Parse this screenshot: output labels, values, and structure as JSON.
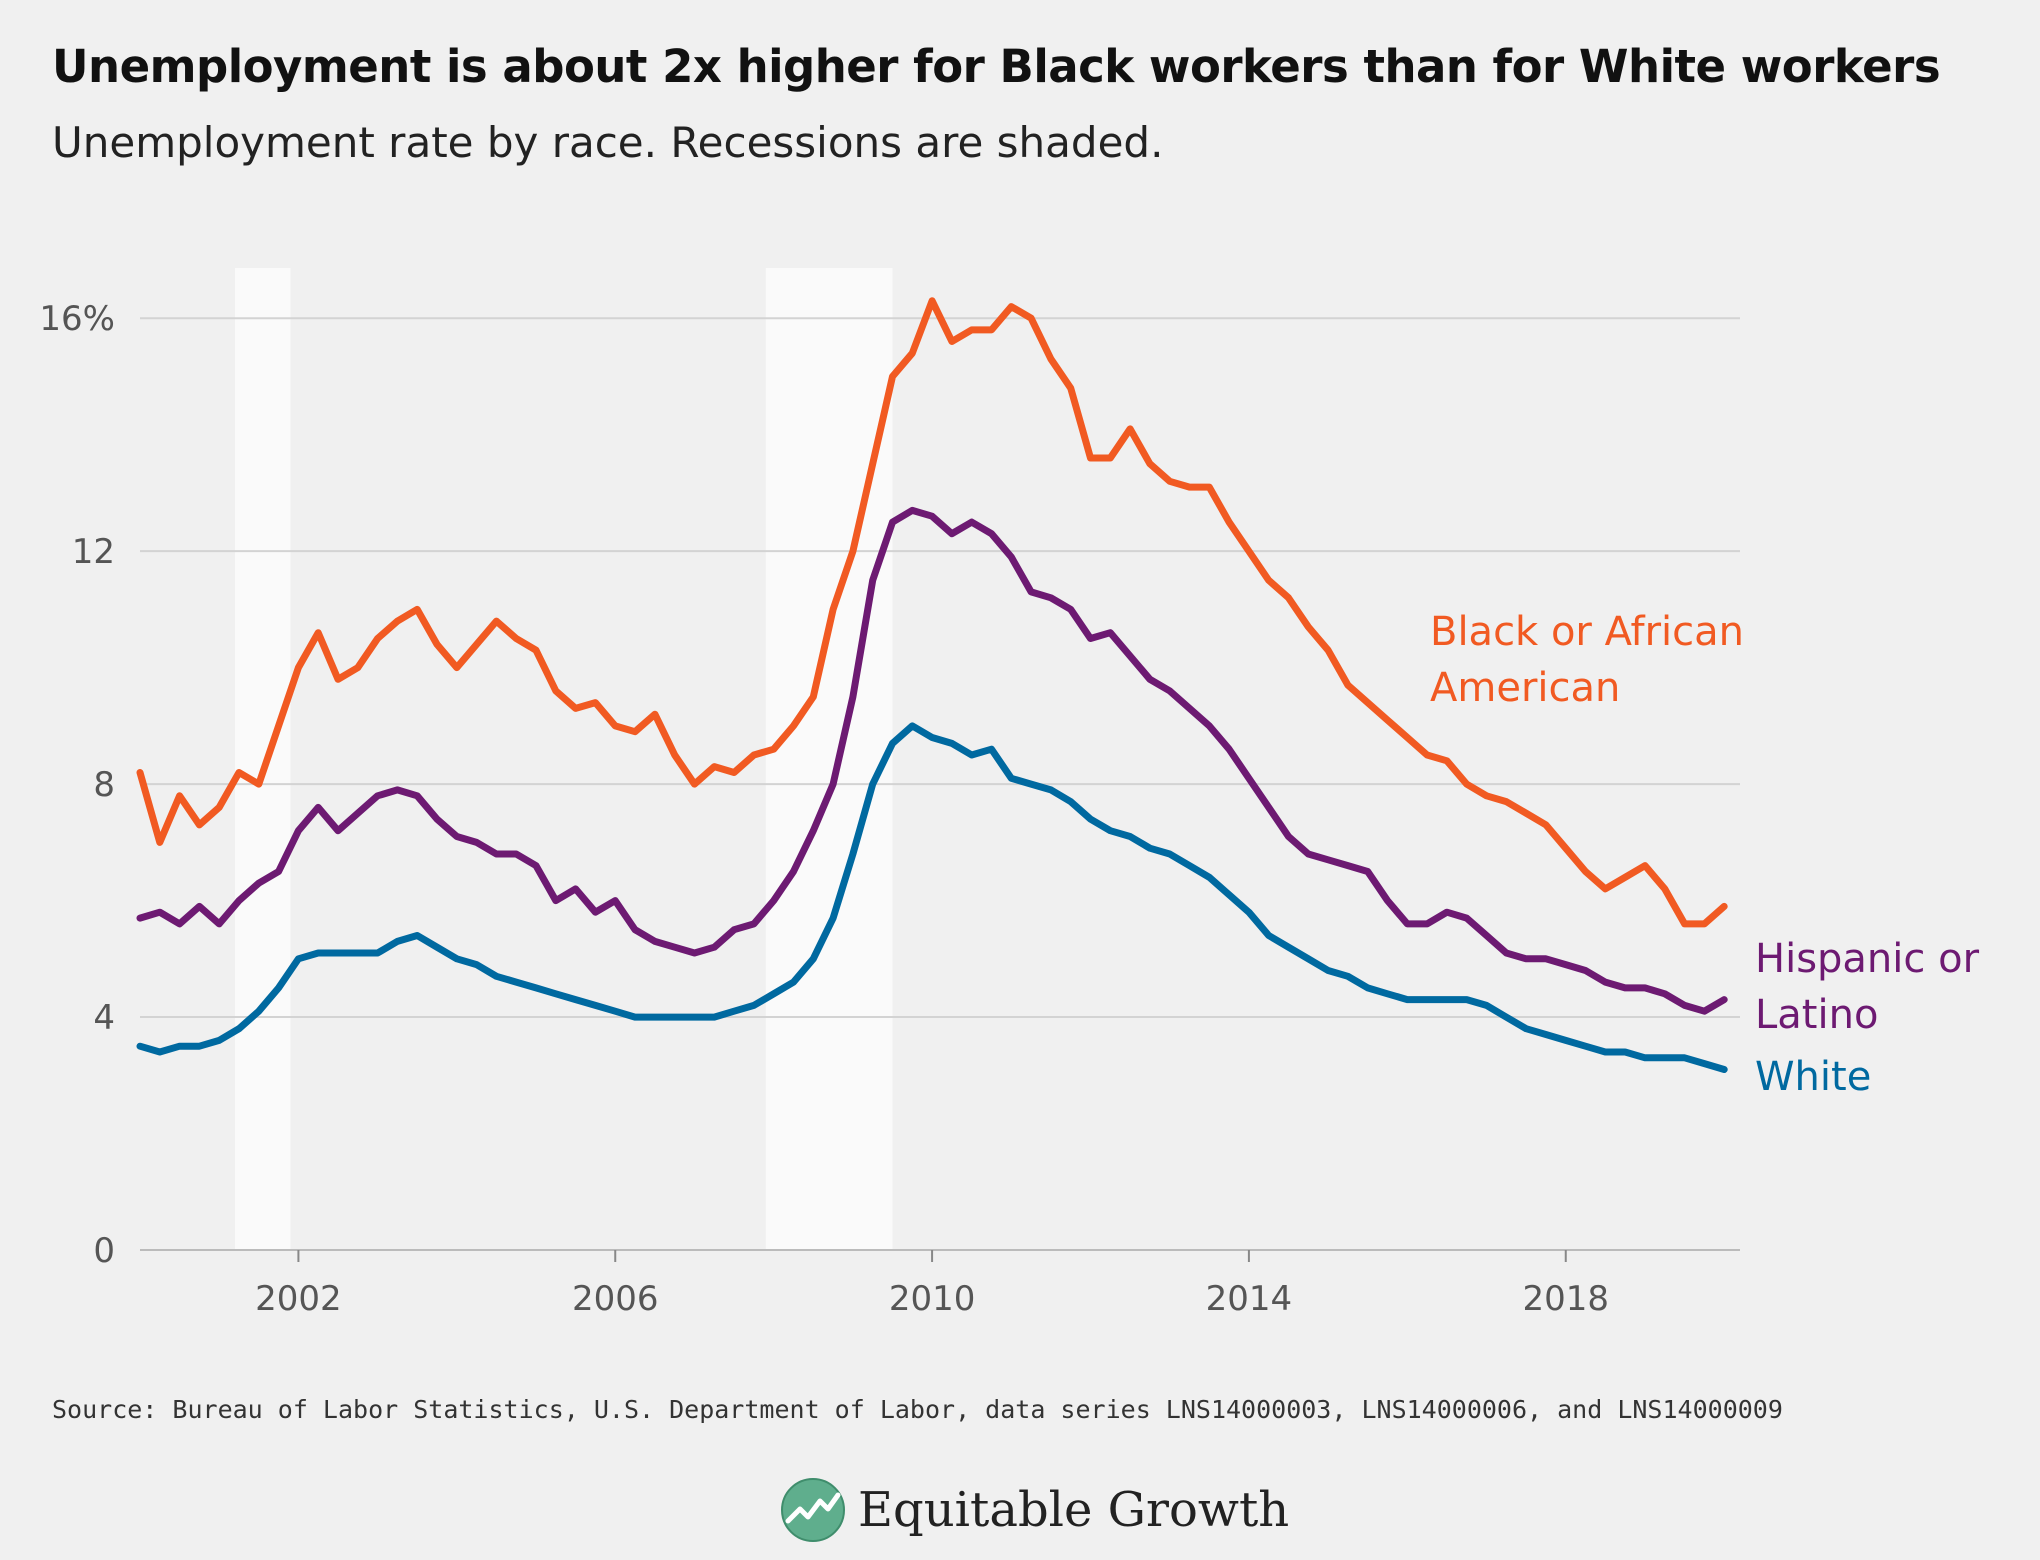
{
  "header": {
    "title": "Unemployment is about 2x higher for Black workers than for White workers",
    "subtitle": "Unemployment rate by race. Recessions are shaded."
  },
  "footer": {
    "source": "Source: Bureau of Labor Statistics, U.S. Department of Labor, data series LNS14000003, LNS14000006, and LNS14000009",
    "brand": "Equitable Growth",
    "logo_icon": "growth-chart-logo-icon"
  },
  "colors": {
    "black": "#f15a22",
    "hispanic": "#6d1a72",
    "white": "#0069a0",
    "recession": "#fafafa",
    "background": "#f0f0f0",
    "grid": "#d3d3d3"
  },
  "chart_data": {
    "type": "line",
    "title": "Unemployment is about 2x higher for Black workers than for White workers",
    "subtitle": "Unemployment rate by race. Recessions are shaded.",
    "xlabel": "",
    "ylabel": "",
    "xlim": [
      2000.0,
      2020.2
    ],
    "ylim": [
      0,
      17
    ],
    "x_ticks": [
      2002,
      2006,
      2010,
      2014,
      2018
    ],
    "x_tick_labels": [
      "2002",
      "2006",
      "2010",
      "2014",
      "2018"
    ],
    "y_ticks": [
      0,
      4,
      8,
      12,
      16
    ],
    "y_tick_labels": [
      "0",
      "4",
      "8",
      "12",
      "16%"
    ],
    "grid": "horizontal",
    "recessions": [
      [
        2001.2,
        2001.9
      ],
      [
        2007.9,
        2009.5
      ]
    ],
    "series": [
      {
        "name": "Black or African American",
        "name_lines": [
          "Black or African",
          "American"
        ],
        "color": "#f15a22",
        "x": [
          2000.0,
          2000.25,
          2000.5,
          2000.75,
          2001.0,
          2001.25,
          2001.5,
          2001.75,
          2002.0,
          2002.25,
          2002.5,
          2002.75,
          2003.0,
          2003.25,
          2003.5,
          2003.75,
          2004.0,
          2004.25,
          2004.5,
          2004.75,
          2005.0,
          2005.25,
          2005.5,
          2005.75,
          2006.0,
          2006.25,
          2006.5,
          2006.75,
          2007.0,
          2007.25,
          2007.5,
          2007.75,
          2008.0,
          2008.25,
          2008.5,
          2008.75,
          2009.0,
          2009.25,
          2009.5,
          2009.75,
          2010.0,
          2010.25,
          2010.5,
          2010.75,
          2011.0,
          2011.25,
          2011.5,
          2011.75,
          2012.0,
          2012.25,
          2012.5,
          2012.75,
          2013.0,
          2013.25,
          2013.5,
          2013.75,
          2014.0,
          2014.25,
          2014.5,
          2014.75,
          2015.0,
          2015.25,
          2015.5,
          2015.75,
          2016.0,
          2016.25,
          2016.5,
          2016.75,
          2017.0,
          2017.25,
          2017.5,
          2017.75,
          2018.0,
          2018.25,
          2018.5,
          2018.75,
          2019.0,
          2019.25,
          2019.5,
          2019.75,
          2020.0
        ],
        "values": [
          8.2,
          7.0,
          7.8,
          7.3,
          7.6,
          8.2,
          8.0,
          9.0,
          10.0,
          10.6,
          9.8,
          10.0,
          10.5,
          10.8,
          11.0,
          10.4,
          10.0,
          10.4,
          10.8,
          10.5,
          10.3,
          9.6,
          9.3,
          9.4,
          9.0,
          8.9,
          9.2,
          8.5,
          8.0,
          8.3,
          8.2,
          8.5,
          8.6,
          9.0,
          9.5,
          11.0,
          12.0,
          13.5,
          15.0,
          15.4,
          16.3,
          15.6,
          15.8,
          15.8,
          16.2,
          16.0,
          15.3,
          14.8,
          13.6,
          13.6,
          14.1,
          13.5,
          13.2,
          13.1,
          13.1,
          12.5,
          12.0,
          11.5,
          11.2,
          10.7,
          10.3,
          9.7,
          9.4,
          9.1,
          8.8,
          8.5,
          8.4,
          8.0,
          7.8,
          7.7,
          7.5,
          7.3,
          6.9,
          6.5,
          6.2,
          6.4,
          6.6,
          6.2,
          5.6,
          5.6,
          5.9
        ]
      },
      {
        "name": "Hispanic or Latino",
        "name_lines": [
          "Hispanic or",
          "Latino"
        ],
        "color": "#6d1a72",
        "x": [
          2000.0,
          2000.25,
          2000.5,
          2000.75,
          2001.0,
          2001.25,
          2001.5,
          2001.75,
          2002.0,
          2002.25,
          2002.5,
          2002.75,
          2003.0,
          2003.25,
          2003.5,
          2003.75,
          2004.0,
          2004.25,
          2004.5,
          2004.75,
          2005.0,
          2005.25,
          2005.5,
          2005.75,
          2006.0,
          2006.25,
          2006.5,
          2006.75,
          2007.0,
          2007.25,
          2007.5,
          2007.75,
          2008.0,
          2008.25,
          2008.5,
          2008.75,
          2009.0,
          2009.25,
          2009.5,
          2009.75,
          2010.0,
          2010.25,
          2010.5,
          2010.75,
          2011.0,
          2011.25,
          2011.5,
          2011.75,
          2012.0,
          2012.25,
          2012.5,
          2012.75,
          2013.0,
          2013.25,
          2013.5,
          2013.75,
          2014.0,
          2014.25,
          2014.5,
          2014.75,
          2015.0,
          2015.25,
          2015.5,
          2015.75,
          2016.0,
          2016.25,
          2016.5,
          2016.75,
          2017.0,
          2017.25,
          2017.5,
          2017.75,
          2018.0,
          2018.25,
          2018.5,
          2018.75,
          2019.0,
          2019.25,
          2019.5,
          2019.75,
          2020.0
        ],
        "values": [
          5.7,
          5.8,
          5.6,
          5.9,
          5.6,
          6.0,
          6.3,
          6.5,
          7.2,
          7.6,
          7.2,
          7.5,
          7.8,
          7.9,
          7.8,
          7.4,
          7.1,
          7.0,
          6.8,
          6.8,
          6.6,
          6.0,
          6.2,
          5.8,
          6.0,
          5.5,
          5.3,
          5.2,
          5.1,
          5.2,
          5.5,
          5.6,
          6.0,
          6.5,
          7.2,
          8.0,
          9.5,
          11.5,
          12.5,
          12.7,
          12.6,
          12.3,
          12.5,
          12.3,
          11.9,
          11.3,
          11.2,
          11.0,
          10.5,
          10.6,
          10.2,
          9.8,
          9.6,
          9.3,
          9.0,
          8.6,
          8.1,
          7.6,
          7.1,
          6.8,
          6.7,
          6.6,
          6.5,
          6.0,
          5.6,
          5.6,
          5.8,
          5.7,
          5.4,
          5.1,
          5.0,
          5.0,
          4.9,
          4.8,
          4.6,
          4.5,
          4.5,
          4.4,
          4.2,
          4.1,
          4.3
        ]
      },
      {
        "name": "White",
        "name_lines": [
          "White"
        ],
        "color": "#0069a0",
        "x": [
          2000.0,
          2000.25,
          2000.5,
          2000.75,
          2001.0,
          2001.25,
          2001.5,
          2001.75,
          2002.0,
          2002.25,
          2002.5,
          2002.75,
          2003.0,
          2003.25,
          2003.5,
          2003.75,
          2004.0,
          2004.25,
          2004.5,
          2004.75,
          2005.0,
          2005.25,
          2005.5,
          2005.75,
          2006.0,
          2006.25,
          2006.5,
          2006.75,
          2007.0,
          2007.25,
          2007.5,
          2007.75,
          2008.0,
          2008.25,
          2008.5,
          2008.75,
          2009.0,
          2009.25,
          2009.5,
          2009.75,
          2010.0,
          2010.25,
          2010.5,
          2010.75,
          2011.0,
          2011.25,
          2011.5,
          2011.75,
          2012.0,
          2012.25,
          2012.5,
          2012.75,
          2013.0,
          2013.25,
          2013.5,
          2013.75,
          2014.0,
          2014.25,
          2014.5,
          2014.75,
          2015.0,
          2015.25,
          2015.5,
          2015.75,
          2016.0,
          2016.25,
          2016.5,
          2016.75,
          2017.0,
          2017.25,
          2017.5,
          2017.75,
          2018.0,
          2018.25,
          2018.5,
          2018.75,
          2019.0,
          2019.25,
          2019.5,
          2019.75,
          2020.0
        ],
        "values": [
          3.5,
          3.4,
          3.5,
          3.5,
          3.6,
          3.8,
          4.1,
          4.5,
          5.0,
          5.1,
          5.1,
          5.1,
          5.1,
          5.3,
          5.4,
          5.2,
          5.0,
          4.9,
          4.7,
          4.6,
          4.5,
          4.4,
          4.3,
          4.2,
          4.1,
          4.0,
          4.0,
          4.0,
          4.0,
          4.0,
          4.1,
          4.2,
          4.4,
          4.6,
          5.0,
          5.7,
          6.8,
          8.0,
          8.7,
          9.0,
          8.8,
          8.7,
          8.5,
          8.6,
          8.1,
          8.0,
          7.9,
          7.7,
          7.4,
          7.2,
          7.1,
          6.9,
          6.8,
          6.6,
          6.4,
          6.1,
          5.8,
          5.4,
          5.2,
          5.0,
          4.8,
          4.7,
          4.5,
          4.4,
          4.3,
          4.3,
          4.3,
          4.3,
          4.2,
          4.0,
          3.8,
          3.7,
          3.6,
          3.5,
          3.4,
          3.4,
          3.3,
          3.3,
          3.3,
          3.2,
          3.1
        ]
      }
    ]
  }
}
